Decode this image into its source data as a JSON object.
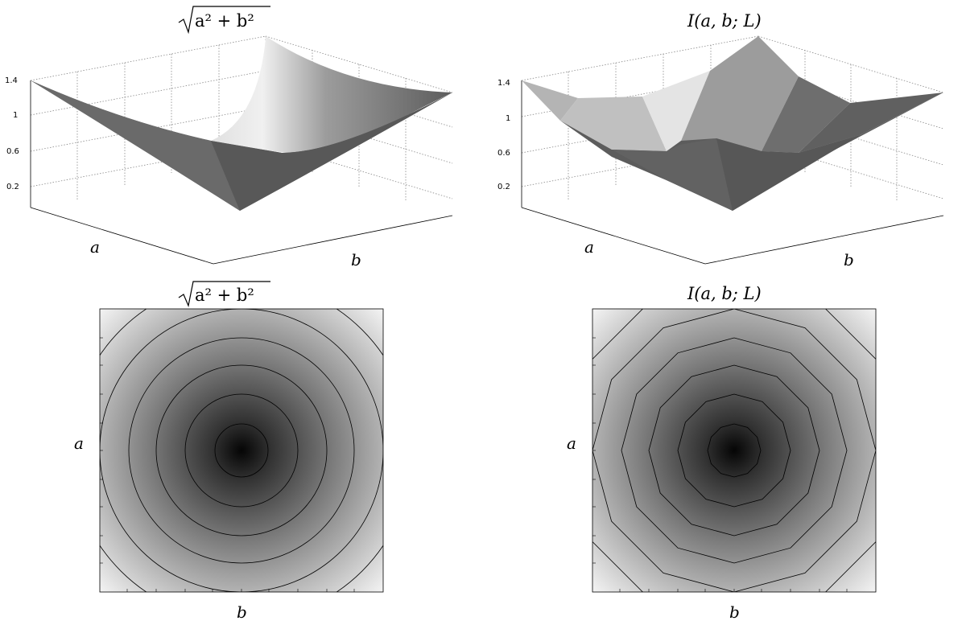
{
  "chart_data": [
    {
      "type": "surface",
      "title": "√(a² + b²)",
      "title_parts": {
        "radicand_a": "a",
        "radicand_b": "b",
        "exp": "2",
        "plus": "+"
      },
      "xlabel": "b",
      "ylabel": "a",
      "zticks": [
        "0.2",
        "0.6",
        "1",
        "1.4"
      ],
      "zlim": [
        0,
        1.4
      ],
      "grid": true,
      "colormap": "gray"
    },
    {
      "type": "surface",
      "title": "I(a, b; L)",
      "xlabel": "b",
      "ylabel": "a",
      "zticks": [
        "0.2",
        "0.6",
        "1",
        "1.4"
      ],
      "zlim": [
        0,
        1.4
      ],
      "grid": true,
      "colormap": "gray",
      "note": "piecewise-planar approximation"
    },
    {
      "type": "heatmap",
      "title": "√(a² + b²)",
      "xlabel": "b",
      "ylabel": "a",
      "contour_levels": [
        0.2,
        0.4,
        0.6,
        0.8,
        1.0,
        1.2
      ],
      "colormap": "gray"
    },
    {
      "type": "heatmap",
      "title": "I(a, b; L)",
      "xlabel": "b",
      "ylabel": "a",
      "contour_levels": [
        0.2,
        0.4,
        0.6,
        0.8,
        1.0,
        1.2
      ],
      "colormap": "gray",
      "contour_shape": "polygon"
    }
  ],
  "labels": {
    "sqrt_title_main": "a² + b²",
    "i_title": "I(a, b; L)",
    "a": "a",
    "b": "b"
  }
}
